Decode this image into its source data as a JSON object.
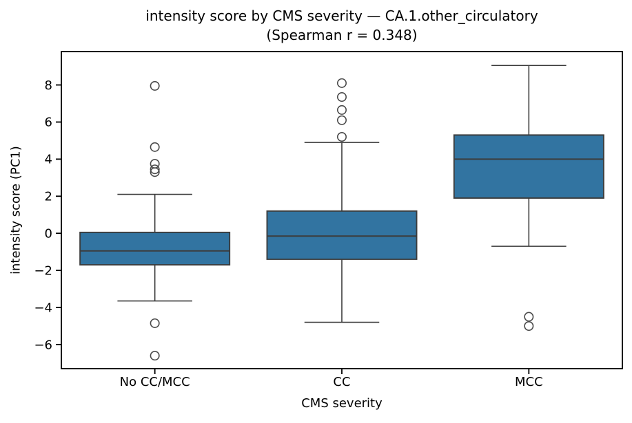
{
  "chart_data": {
    "type": "box",
    "title_line1": "intensity score by CMS severity — CA.1.other_circulatory",
    "title_line2": "(Spearman r = 0.348)",
    "xlabel": "CMS severity",
    "ylabel": "intensity score (PC1)",
    "categories": [
      "No CC/MCC",
      "CC",
      "MCC"
    ],
    "ylim": [
      -7.3,
      9.8
    ],
    "yticks": [
      {
        "value": 8,
        "label": "8"
      },
      {
        "value": 6,
        "label": "6"
      },
      {
        "value": 4,
        "label": "4"
      },
      {
        "value": 2,
        "label": "2"
      },
      {
        "value": 0,
        "label": "0"
      },
      {
        "value": -2,
        "label": "−2"
      },
      {
        "value": -4,
        "label": "−4"
      },
      {
        "value": -6,
        "label": "−6"
      }
    ],
    "series": [
      {
        "category": "No CC/MCC",
        "whisker_low": -3.65,
        "q1": -1.7,
        "median": -0.95,
        "q3": 0.05,
        "whisker_high": 2.1,
        "outliers": [
          7.95,
          4.65,
          3.75,
          3.45,
          3.3,
          -4.85,
          -6.6
        ]
      },
      {
        "category": "CC",
        "whisker_low": -4.8,
        "q1": -1.4,
        "median": -0.15,
        "q3": 1.2,
        "whisker_high": 4.9,
        "outliers": [
          8.1,
          7.35,
          6.65,
          6.1,
          5.2
        ]
      },
      {
        "category": "MCC",
        "whisker_low": -0.7,
        "q1": 1.9,
        "median": 4.0,
        "q3": 5.3,
        "whisker_high": 9.05,
        "outliers": [
          -4.5,
          -5.0
        ]
      }
    ],
    "box_width_frac": 0.8,
    "cap_width_frac": 0.4,
    "grid": false,
    "legend": "none",
    "style": {
      "box_fill": "#3274a1",
      "box_edge": "#3c3c3c",
      "whisker_color": "#3c3c3c",
      "flier_edge": "#4a4a4a",
      "spine_color": "#000000",
      "background": "#ffffff",
      "text_color": "#000000"
    }
  }
}
